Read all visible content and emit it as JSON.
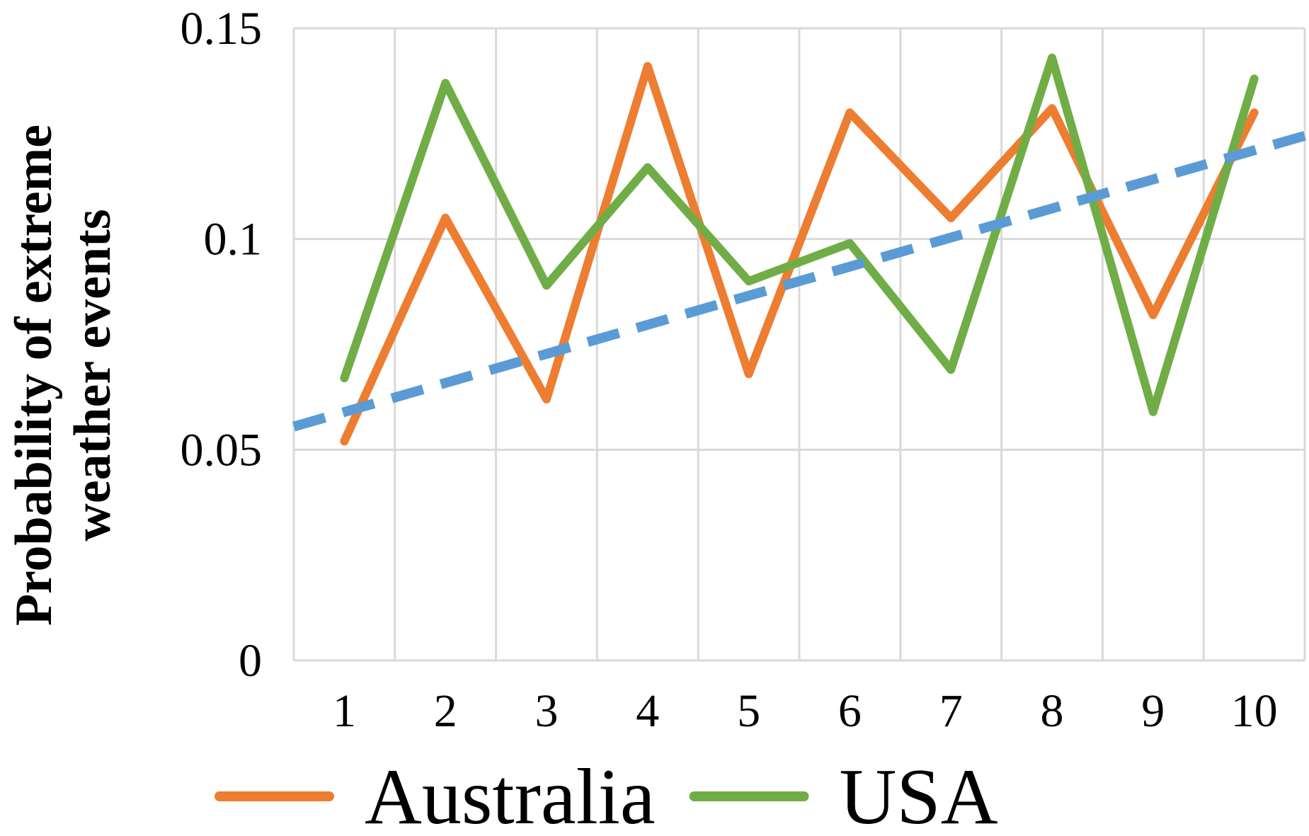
{
  "chart_data": {
    "type": "line",
    "title": "",
    "xlabel": "",
    "ylabel_lines": [
      "Probability of extreme",
      "weather events"
    ],
    "categories": [
      "1",
      "2",
      "3",
      "4",
      "5",
      "6",
      "7",
      "8",
      "9",
      "10"
    ],
    "y_ticks": [
      0,
      0.05,
      0.1,
      0.15
    ],
    "y_tick_labels": [
      "0",
      "0.05",
      "0.1",
      "0.15"
    ],
    "ylim": [
      0,
      0.15
    ],
    "grid": true,
    "legend_position": "bottom",
    "series": [
      {
        "name": "Australia",
        "color": "#ed7d31",
        "values": [
          0.052,
          0.105,
          0.062,
          0.141,
          0.068,
          0.13,
          0.105,
          0.131,
          0.082,
          0.13
        ]
      },
      {
        "name": "USA",
        "color": "#70ad47",
        "values": [
          0.067,
          0.137,
          0.089,
          0.117,
          0.09,
          0.099,
          0.069,
          0.143,
          0.059,
          0.138
        ]
      }
    ],
    "trendline": {
      "style": "dashed",
      "color": "#5b9bd5",
      "x_range": [
        0.5,
        10.5
      ],
      "y_range": [
        0.0555,
        0.1245
      ]
    }
  }
}
